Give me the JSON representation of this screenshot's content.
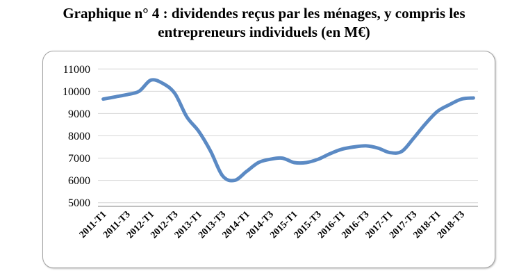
{
  "chart_data": {
    "type": "line",
    "title": "Graphique n° 4 : dividendes reçus par les ménages, y compris les entrepreneurs individuels (en M€)",
    "xlabel": "",
    "ylabel": "",
    "unit": "M€",
    "x": [
      "2011-T1",
      "2011-T2",
      "2011-T3",
      "2011-T4",
      "2012-T1",
      "2012-T2",
      "2012-T3",
      "2012-T4",
      "2013-T1",
      "2013-T2",
      "2013-T3",
      "2013-T4",
      "2014-T1",
      "2014-T2",
      "2014-T3",
      "2014-T4",
      "2015-T1",
      "2015-T2",
      "2015-T3",
      "2015-T4",
      "2016-T1",
      "2016-T2",
      "2016-T3",
      "2016-T4",
      "2017-T1",
      "2017-T2",
      "2017-T3",
      "2017-T4",
      "2018-T1",
      "2018-T2",
      "2018-T3",
      "2018-T4"
    ],
    "values": [
      9650,
      9750,
      9850,
      10000,
      10500,
      10350,
      9900,
      8850,
      8200,
      7300,
      6200,
      6000,
      6400,
      6800,
      6950,
      7000,
      6800,
      6800,
      6950,
      7200,
      7400,
      7500,
      7550,
      7450,
      7250,
      7300,
      7900,
      8550,
      9100,
      9400,
      9650,
      9700
    ],
    "x_ticks_shown": [
      "2011-T1",
      "2011-T3",
      "2012-T1",
      "2012-T3",
      "2013-T1",
      "2013-T3",
      "2014-T1",
      "2014-T3",
      "2015-T1",
      "2015-T3",
      "2016-T1",
      "2016-T3",
      "2017-T1",
      "2017-T3",
      "2018-T1",
      "2018-T3"
    ],
    "y_ticks": [
      5000,
      6000,
      7000,
      8000,
      9000,
      10000,
      11000
    ],
    "ylim": [
      5000,
      11000
    ],
    "grid": "horizontal",
    "legend": "none",
    "smooth": true,
    "line_color": "#5B8AC4",
    "grid_color": "#D6D6D6",
    "axis_color": "#9B9B9B",
    "tick_label_color": "#000000"
  }
}
